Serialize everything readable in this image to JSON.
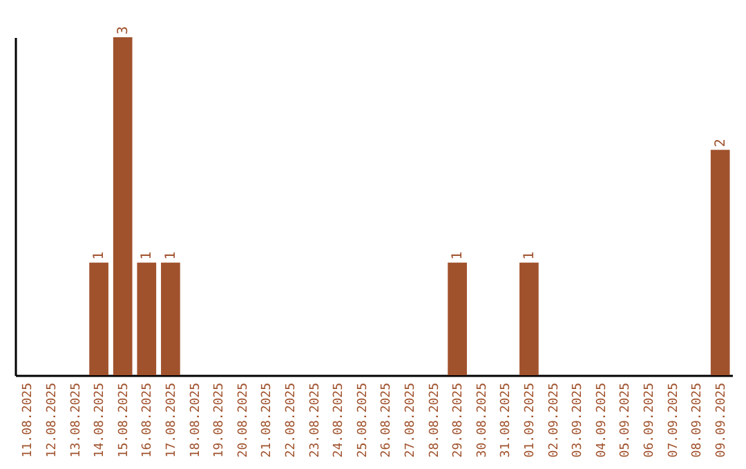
{
  "chart_data": {
    "type": "bar",
    "categories": [
      "11.08.2025",
      "12.08.2025",
      "13.08.2025",
      "14.08.2025",
      "15.08.2025",
      "16.08.2025",
      "17.08.2025",
      "18.08.2025",
      "19.08.2025",
      "20.08.2025",
      "21.08.2025",
      "22.08.2025",
      "23.08.2025",
      "24.08.2025",
      "25.08.2025",
      "26.08.2025",
      "27.08.2025",
      "28.08.2025",
      "29.08.2025",
      "30.08.2025",
      "31.08.2025",
      "01.09.2025",
      "02.09.2025",
      "03.09.2025",
      "04.09.2025",
      "05.09.2025",
      "06.09.2025",
      "07.09.2025",
      "08.09.2025",
      "09.09.2025"
    ],
    "values": [
      0,
      0,
      0,
      1,
      3,
      1,
      1,
      0,
      0,
      0,
      0,
      0,
      0,
      0,
      0,
      0,
      0,
      0,
      1,
      0,
      0,
      1,
      0,
      0,
      0,
      0,
      0,
      0,
      0,
      2
    ],
    "value_labels": [
      null,
      null,
      null,
      "1",
      "3",
      "1",
      "1",
      null,
      null,
      null,
      null,
      null,
      null,
      null,
      null,
      null,
      null,
      null,
      "1",
      null,
      null,
      "1",
      null,
      null,
      null,
      null,
      null,
      null,
      null,
      "2"
    ],
    "color": "#a0522d"
  }
}
